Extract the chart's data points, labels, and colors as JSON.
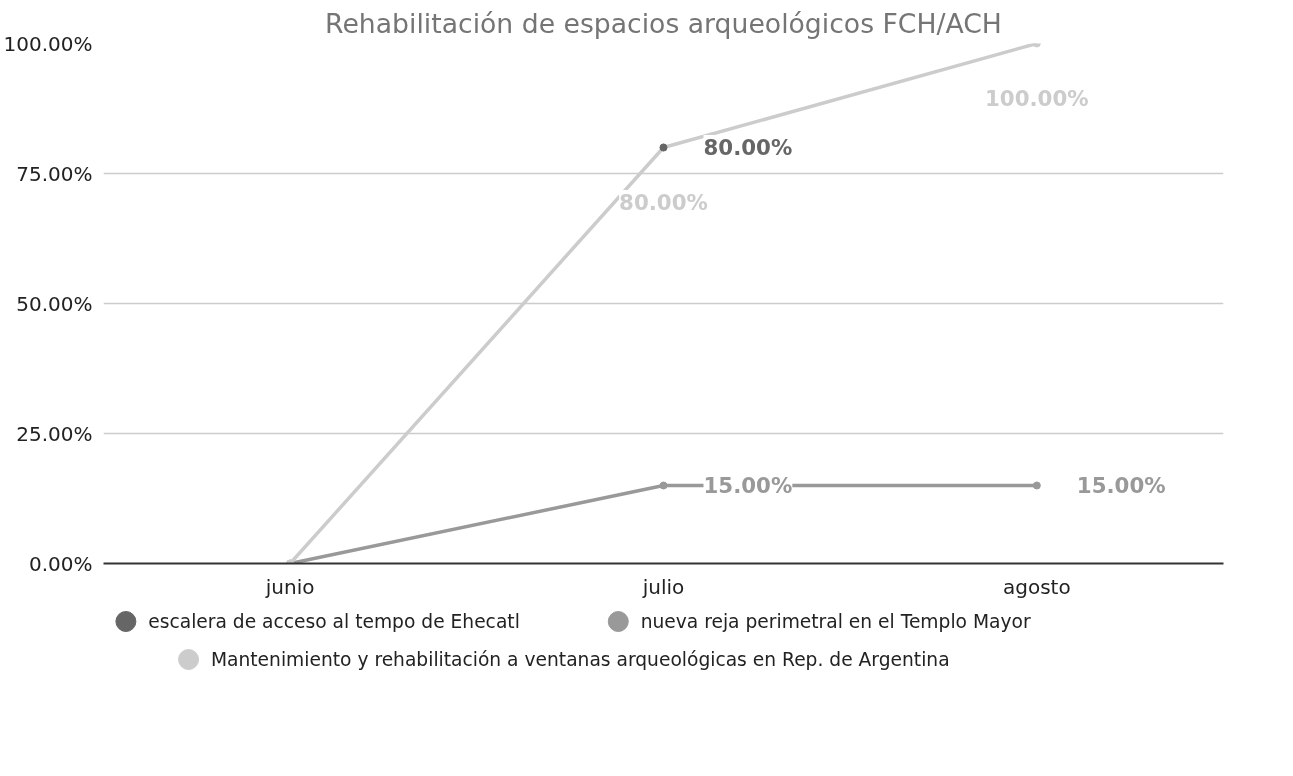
{
  "chart_data": {
    "type": "line",
    "title": "Rehabilitación de espacios arqueológicos FCH/ACH",
    "categories": [
      "junio",
      "julio",
      "agosto"
    ],
    "series": [
      {
        "name": "escalera de acceso al tempo de Ehecatl",
        "color": "#666666",
        "values": [
          null,
          80,
          null
        ],
        "value_labels": [
          null,
          "80.00%",
          null
        ]
      },
      {
        "name": "nueva reja perimetral en el Templo Mayor",
        "color": "#999999",
        "values": [
          0,
          15,
          15
        ],
        "value_labels": [
          null,
          "15.00%",
          "15.00%"
        ]
      },
      {
        "name": "Mantenimiento y rehabilitación a ventanas arqueológicas en Rep. de Argentina",
        "color": "#cccccc",
        "values": [
          0,
          80,
          100
        ],
        "value_labels": [
          null,
          "80.00%",
          "100.00%"
        ]
      }
    ],
    "ylim": [
      0,
      100
    ],
    "yticks": [
      {
        "value": 0,
        "label": "0.00%"
      },
      {
        "value": 25,
        "label": "25.00%"
      },
      {
        "value": 50,
        "label": "50.00%"
      },
      {
        "value": 75,
        "label": "75.00%"
      },
      {
        "value": 100,
        "label": "100.00%"
      }
    ],
    "grid": "y",
    "legend": "bottom",
    "marker": "circle",
    "line_style": "solid"
  }
}
